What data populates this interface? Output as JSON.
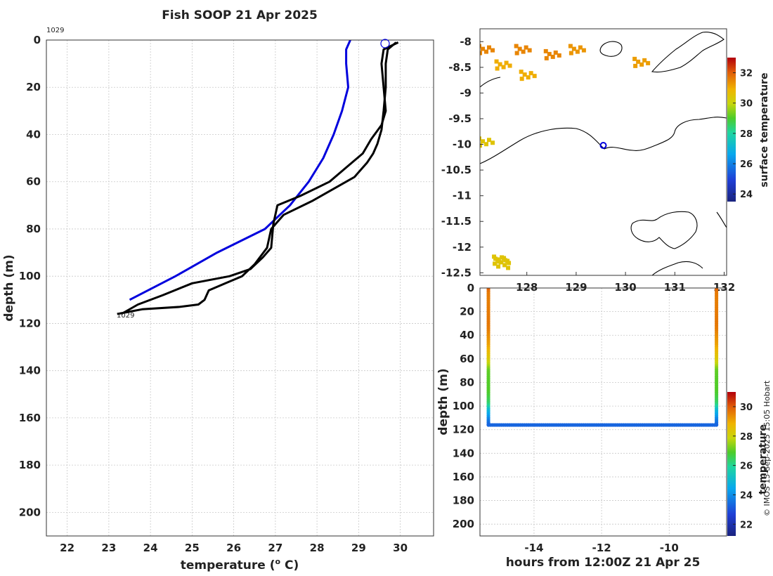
{
  "title": "Fish SOOP 21 Apr 2025",
  "copyright": "© IMOS 15-Sep-2025 15:05 Hobart",
  "colors": {
    "blue": "#0000dd",
    "black": "#000000",
    "sst_low": "#1a237e",
    "sst_high": "#b2000c"
  },
  "chart_data": [
    {
      "type": "line",
      "name": "temperature-profile",
      "xlabel": "temperature (o C)",
      "ylabel": "depth (m)",
      "xlim": [
        21.5,
        30.8
      ],
      "ylim": [
        210,
        0
      ],
      "xticks": [
        22,
        23,
        24,
        25,
        26,
        27,
        28,
        29,
        30
      ],
      "yticks": [
        0,
        20,
        40,
        60,
        80,
        100,
        120,
        140,
        160,
        180,
        200
      ],
      "annotations": [
        "1029",
        "1029"
      ],
      "series": [
        {
          "name": "blue-profile",
          "color": "#0000dd",
          "points": [
            [
              28.8,
              0
            ],
            [
              28.7,
              4
            ],
            [
              28.7,
              10
            ],
            [
              28.75,
              20
            ],
            [
              28.6,
              30
            ],
            [
              28.4,
              40
            ],
            [
              28.15,
              50
            ],
            [
              27.8,
              60
            ],
            [
              27.35,
              70
            ],
            [
              26.75,
              80
            ],
            [
              25.6,
              90
            ],
            [
              24.6,
              100
            ],
            [
              23.5,
              110
            ]
          ]
        },
        {
          "name": "black-profile-a",
          "color": "#000000",
          "points": [
            [
              29.9,
              1
            ],
            [
              29.7,
              4
            ],
            [
              29.65,
              10
            ],
            [
              29.65,
              20
            ],
            [
              29.6,
              30
            ],
            [
              29.55,
              38
            ],
            [
              29.45,
              44
            ],
            [
              29.35,
              48
            ],
            [
              29.2,
              52
            ],
            [
              28.9,
              58
            ],
            [
              28.5,
              62
            ],
            [
              27.9,
              68
            ],
            [
              27.2,
              74
            ],
            [
              26.9,
              80
            ],
            [
              26.8,
              88
            ],
            [
              26.5,
              95
            ],
            [
              26.2,
              100
            ],
            [
              25.8,
              103
            ],
            [
              25.4,
              106
            ],
            [
              25.3,
              110
            ],
            [
              25.15,
              112
            ],
            [
              24.7,
              113
            ],
            [
              23.8,
              114
            ],
            [
              23.2,
              116
            ]
          ]
        },
        {
          "name": "black-profile-b",
          "color": "#000000",
          "points": [
            [
              29.95,
              1
            ],
            [
              29.6,
              4
            ],
            [
              29.55,
              10
            ],
            [
              29.6,
              20
            ],
            [
              29.65,
              30
            ],
            [
              29.55,
              36
            ],
            [
              29.3,
              42
            ],
            [
              29.1,
              48
            ],
            [
              28.7,
              54
            ],
            [
              28.3,
              60
            ],
            [
              27.6,
              66
            ],
            [
              27.05,
              70
            ],
            [
              26.95,
              78
            ],
            [
              26.9,
              88
            ],
            [
              26.7,
              92
            ],
            [
              26.4,
              97
            ],
            [
              25.9,
              100
            ],
            [
              25.0,
              103
            ],
            [
              24.3,
              108
            ],
            [
              23.7,
              112
            ],
            [
              23.3,
              116
            ]
          ]
        }
      ]
    },
    {
      "type": "heatmap",
      "name": "surface-temperature-map",
      "xticks": [
        "128",
        "129",
        "130",
        "131",
        "132"
      ],
      "yticks": [
        "-8",
        "-8.5",
        "-9",
        "-9.5",
        "-10",
        "-10.5",
        "-11",
        "-11.5",
        "-12",
        "-12.5"
      ],
      "xlim": [
        127.05,
        132.05
      ],
      "ylim": [
        -12.55,
        -7.75
      ],
      "station": {
        "lon": 129.55,
        "lat": -10.02
      },
      "colorbar": {
        "label": "surface temperature",
        "ticks": [
          24,
          26,
          28,
          30,
          32
        ],
        "range": [
          23.5,
          33
        ]
      },
      "sst_patches": [
        {
          "lon": 127.05,
          "lat": -8.1,
          "value": 31.5
        },
        {
          "lon": 127.4,
          "lat": -8.4,
          "value": 31.0
        },
        {
          "lon": 127.8,
          "lat": -8.1,
          "value": 31.5
        },
        {
          "lon": 127.9,
          "lat": -8.6,
          "value": 31.0
        },
        {
          "lon": 128.4,
          "lat": -8.2,
          "value": 31.5
        },
        {
          "lon": 128.9,
          "lat": -8.1,
          "value": 31.3
        },
        {
          "lon": 130.2,
          "lat": -8.35,
          "value": 31.2
        },
        {
          "lon": 127.05,
          "lat": -9.9,
          "value": 30.5
        },
        {
          "lon": 127.35,
          "lat": -12.2,
          "value": 30.5
        }
      ]
    },
    {
      "type": "scatter",
      "name": "temperature-section",
      "xlabel": "hours from 12:00Z 21 Apr 25",
      "ylabel": "depth (m)",
      "xlim": [
        -15.6,
        -8.3
      ],
      "ylim": [
        210,
        0
      ],
      "xticks": [
        -14,
        -12,
        -10
      ],
      "yticks": [
        0,
        20,
        40,
        60,
        80,
        100,
        120,
        140,
        160,
        180,
        200
      ],
      "cast_times": [
        -15.35,
        -8.6
      ],
      "cast_bottom": 116,
      "track_depth": 116,
      "colorbar": {
        "label": "temperature",
        "ticks": [
          22,
          24,
          26,
          28,
          30
        ],
        "range": [
          21.2,
          31
        ]
      }
    }
  ]
}
